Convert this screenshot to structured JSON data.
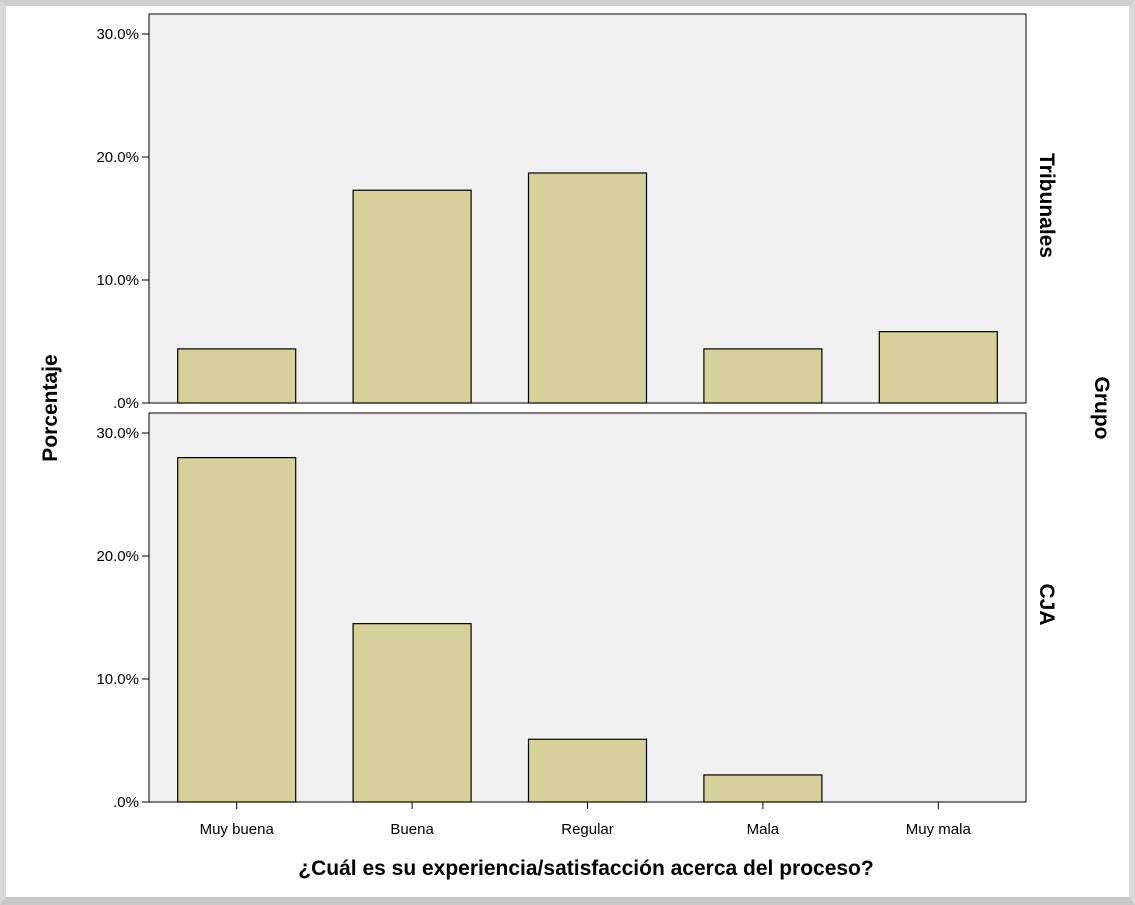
{
  "chart_data": {
    "type": "bar",
    "layout": "faceted-rows",
    "xlabel": "¿Cuál es su experiencia/satisfacción acerca del proceso?",
    "ylabel": "Porcentaje",
    "facet_label": "Grupo",
    "categories": [
      "Muy buena",
      "Buena",
      "Regular",
      "Mala",
      "Muy mala"
    ],
    "ylim": [
      0,
      30
    ],
    "yticks": [
      0,
      10,
      20,
      30
    ],
    "ytick_labels": [
      ".0%",
      "10.0%",
      "20.0%",
      "30.0%"
    ],
    "grid": false,
    "bar_color": "#d6d19b",
    "panel_background": "#f0f0f0",
    "panels": [
      {
        "name": "Tribunales",
        "values": [
          4.4,
          17.3,
          18.7,
          4.4,
          5.8
        ]
      },
      {
        "name": "CJA",
        "values": [
          28.0,
          14.5,
          5.1,
          2.2,
          0
        ]
      }
    ]
  }
}
